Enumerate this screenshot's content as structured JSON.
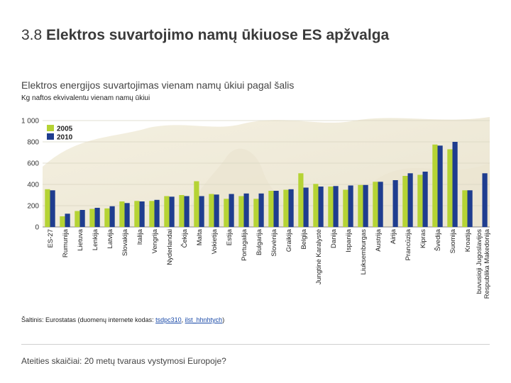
{
  "page": {
    "title_number": "3.8",
    "title_text": "Elektros suvartojimo namų ūkiuose ES apžvalga",
    "subtitle": "Elektros energijos suvartojimas vienam namų ūkiui pagal šalis",
    "unit_label": "Kg naftos ekvivalentu vienam namų ūkiui",
    "source_prefix": "Šaltinis:",
    "source_text": " Eurostatas (duomenų internete kodas: ",
    "source_link1": "tsdpc310",
    "source_sep": ", ",
    "source_link2": "ilst_hhnhtych",
    "source_suffix": ")",
    "footer": "Ateities skaičiai: 20 metų tvaraus vystymosi Europoje?"
  },
  "chart_data": {
    "type": "bar",
    "categories": [
      "ES-27",
      "Rumunija",
      "Lietuva",
      "Lenkija",
      "Latvija",
      "Slovakija",
      "Italija",
      "Vengrija",
      "Nyderlandai",
      "Čekija",
      "Malta",
      "Vokietija",
      "Estija",
      "Portugalija",
      "Bulgarija",
      "Slovėnija",
      "Graikija",
      "Belgija",
      "Jungtinė Karalystė",
      "Danija",
      "Ispanija",
      "Liuksemburgas",
      "Austrija",
      "Airija",
      "Prancūzija",
      "Kipras",
      "Švedija",
      "Suomija",
      "Kroatija",
      "buvusioji Jugoslavijos Respublika Makedonija"
    ],
    "series": [
      {
        "name": "2005",
        "color": "#b5d334",
        "values": [
          355,
          100,
          150,
          170,
          175,
          240,
          245,
          245,
          290,
          300,
          430,
          310,
          265,
          290,
          265,
          340,
          350,
          505,
          405,
          380,
          350,
          395,
          425,
          null,
          480,
          490,
          775,
          730,
          345,
          null
        ]
      },
      {
        "name": "2010",
        "color": "#1f3d8f",
        "values": [
          345,
          125,
          160,
          180,
          195,
          225,
          240,
          255,
          285,
          290,
          290,
          305,
          310,
          315,
          315,
          340,
          355,
          370,
          380,
          385,
          390,
          395,
          425,
          440,
          505,
          520,
          765,
          800,
          345,
          505
        ]
      }
    ],
    "ylim": [
      0,
      1000
    ],
    "yticks": [
      "0",
      "200",
      "400",
      "600",
      "800",
      "1 000"
    ],
    "ytick_values": [
      0,
      200,
      400,
      600,
      800,
      1000
    ],
    "legend_position": "top-left",
    "grid": true
  }
}
